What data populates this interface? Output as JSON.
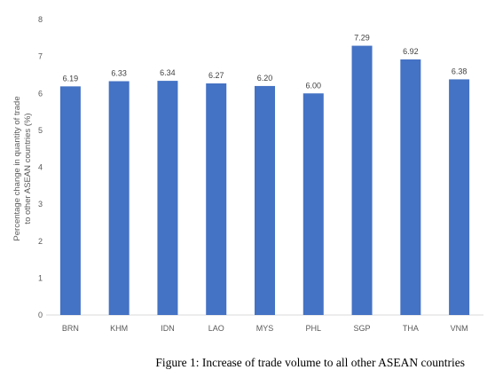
{
  "chart_data": {
    "type": "bar",
    "categories": [
      "BRN",
      "KHM",
      "IDN",
      "LAO",
      "MYS",
      "PHL",
      "SGP",
      "THA",
      "VNM"
    ],
    "values": [
      6.19,
      6.33,
      6.34,
      6.27,
      6.2,
      6.0,
      7.29,
      6.92,
      6.38
    ],
    "value_labels": [
      "6.19",
      "6.33",
      "6.34",
      "6.27",
      "6.20",
      "6.00",
      "7.29",
      "6.92",
      "6.38"
    ],
    "ylabel_lines": [
      "Percentage change in quantity of trade",
      "to other ASEAN countries (%)"
    ],
    "xlabel": "",
    "ylim": [
      0,
      8
    ],
    "yticks": [
      "0",
      "1",
      "2",
      "3",
      "4",
      "5",
      "6",
      "7",
      "8"
    ],
    "grid": false,
    "legend": "none",
    "bar_color": "#4472c4",
    "axis_color": "#d9d9d9"
  },
  "caption": "Figure 1: Increase of trade volume to all other ASEAN countries"
}
